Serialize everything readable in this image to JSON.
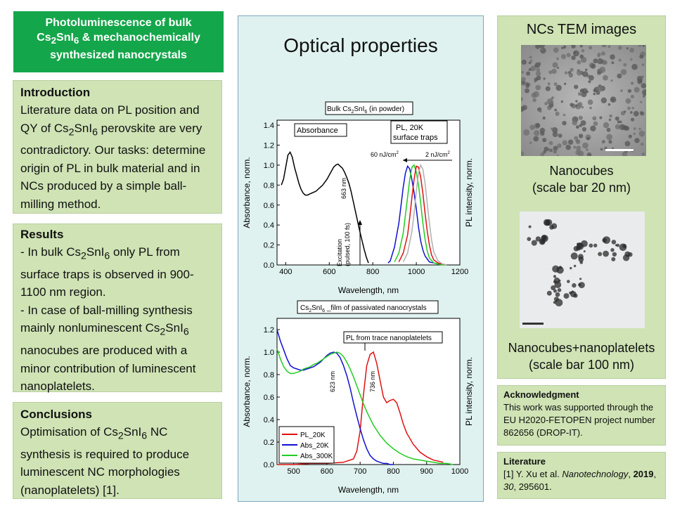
{
  "title": {
    "l1": "Photoluminescence of bulk",
    "l2a": "Cs",
    "l2s1": "2",
    "l2b": "SnI",
    "l2s2": "6",
    "l2c": " & mechanochemically",
    "l3": "synthesized nanocrystals"
  },
  "intro": {
    "heading": "Introduction",
    "t1": "Literature data on PL position and QY of Cs",
    "s1": "2",
    "t2": "SnI",
    "s2": "6",
    "t3": " perovskite are very contradictory. Our tasks: determine origin of PL in bulk material and in NCs produced by a simple ball-milling method."
  },
  "results": {
    "heading": "Results",
    "a1": "- In bulk Cs",
    "as1": "2",
    "a2": "SnI",
    "as2": "6",
    "a3": " only PL from surface traps is observed  in 900-1100 nm region.",
    "b1": "- In case of ball-milling synthesis mainly nonluminescent  Cs",
    "bs1": "2",
    "b2": "SnI",
    "bs2": "6",
    "b3": " nanocubes are produced with a minor contribution of luminescent nanoplatelets."
  },
  "conclusions": {
    "heading": "Conclusions",
    "t1": "Optimisation of Cs",
    "s1": "2",
    "t2": "SnI",
    "s2": "6",
    "t3": " NC synthesis is required to produce luminescent NC morphologies (nanoplatelets)  [1]."
  },
  "center": {
    "heading": "Optical properties"
  },
  "tem": {
    "heading": "NCs TEM images",
    "cap1a": "Nanocubes",
    "cap1b": "(scale bar 20 nm)",
    "cap2a": "Nanocubes+nanoplatelets",
    "cap2b": "(scale bar 100 nm)"
  },
  "ack": {
    "heading": "Acknowledgment",
    "text": "This work was supported through the EU H2020-FETOPEN project number 862656 (DROP-IT)."
  },
  "lit": {
    "heading": "Literature",
    "a": "[1] Y. Xu et al. ",
    "j": "Nanotechnology",
    "c": ", ",
    "y": "2019",
    "c2": ", ",
    "v": "30",
    "p": ", 295601."
  },
  "colors": {
    "red": "#e01010",
    "blue": "#1010d0",
    "green": "#22cc22",
    "gray": "#b0b0b0",
    "dot": "#1f1f1f"
  },
  "chart_data": [
    {
      "type": "line",
      "title_a": "Bulk Cs",
      "title_s1": "2",
      "title_b": "SnI",
      "title_s2": "6",
      "title_c": " (in powder)",
      "xlabel": "Wavelength, nm",
      "ylabel": "Absorbance, norm.",
      "ylabel2": "PL intensity, norm.",
      "xlim": [
        360,
        1200
      ],
      "ylim": [
        0,
        1.45
      ],
      "xticks": [
        400,
        600,
        800,
        1000,
        1200
      ],
      "yticks": [
        0.0,
        0.2,
        0.4,
        0.6,
        0.8,
        1.0,
        1.2,
        1.4
      ],
      "xtick_labels": [
        "400",
        "600",
        "800",
        "1000",
        "1200"
      ],
      "ytick_labels": [
        "0.0",
        "0.2",
        "0.4",
        "0.6",
        "0.8",
        "1.0",
        "1.2",
        "1.4"
      ],
      "annotations": {
        "absorbance": "Absorbance",
        "pl1": "PL, 20K",
        "pl2": "surface traps",
        "p60": "60 nJ/cm",
        "p60s": "2",
        "p2": "2 nJ/cm",
        "p2s": "2",
        "pk663": "663 nm",
        "exc1": "Excitation",
        "exc2": "(pulsed, 100 fs)"
      },
      "series": [
        {
          "name": "Absorbance",
          "color": "#000000",
          "x": [
            380,
            390,
            400,
            410,
            420,
            430,
            440,
            450,
            460,
            470,
            480,
            490,
            500,
            510,
            520,
            530,
            540,
            550,
            560,
            570,
            580,
            590,
            600,
            610,
            620,
            630,
            640,
            650,
            660,
            670,
            680,
            690,
            700,
            710,
            720,
            730,
            740,
            750,
            760,
            770,
            780
          ],
          "y": [
            0.8,
            0.86,
            0.98,
            1.1,
            1.13,
            1.08,
            0.98,
            0.9,
            0.82,
            0.76,
            0.72,
            0.7,
            0.7,
            0.71,
            0.72,
            0.73,
            0.74,
            0.76,
            0.78,
            0.8,
            0.83,
            0.86,
            0.9,
            0.94,
            0.98,
            1.0,
            1.01,
            0.99,
            0.97,
            0.93,
            0.88,
            0.82,
            0.74,
            0.64,
            0.54,
            0.44,
            0.34,
            0.25,
            0.16,
            0.08,
            0.02
          ]
        },
        {
          "name": "PL 60 nJ/cm2",
          "color": "#1010d0",
          "x": [
            870,
            880,
            900,
            920,
            930,
            940,
            950,
            960,
            970,
            980,
            990,
            1000,
            1010,
            1020,
            1030,
            1040,
            1050,
            1060,
            1080,
            1100,
            1120
          ],
          "y": [
            0.02,
            0.04,
            0.18,
            0.42,
            0.6,
            0.78,
            0.92,
            0.99,
            0.96,
            0.85,
            0.72,
            0.56,
            0.38,
            0.24,
            0.15,
            0.09,
            0.06,
            0.03,
            0.02,
            0.01,
            0.0
          ]
        },
        {
          "name": "PL",
          "color": "#22cc22",
          "x": [
            900,
            920,
            940,
            950,
            960,
            970,
            980,
            990,
            1000,
            1010,
            1020,
            1030,
            1040,
            1050,
            1060,
            1080,
            1100,
            1120,
            1140
          ],
          "y": [
            0.03,
            0.12,
            0.32,
            0.5,
            0.68,
            0.86,
            0.98,
            1.0,
            0.93,
            0.8,
            0.62,
            0.42,
            0.26,
            0.14,
            0.07,
            0.02,
            0.01,
            0.0,
            0.0
          ]
        },
        {
          "name": "PL",
          "color": "#e01010",
          "x": [
            920,
            940,
            960,
            970,
            980,
            990,
            1000,
            1010,
            1020,
            1030,
            1040,
            1050,
            1060,
            1070,
            1080,
            1100,
            1120,
            1140
          ],
          "y": [
            0.03,
            0.12,
            0.3,
            0.48,
            0.68,
            0.86,
            0.99,
            0.98,
            0.88,
            0.72,
            0.52,
            0.34,
            0.2,
            0.1,
            0.05,
            0.02,
            0.01,
            0.0
          ]
        },
        {
          "name": "PL 2 nJ/cm2",
          "color": "#b0b0b0",
          "x": [
            940,
            960,
            980,
            990,
            1000,
            1010,
            1020,
            1030,
            1040,
            1050,
            1060,
            1070,
            1080,
            1100,
            1120,
            1140
          ],
          "y": [
            0.03,
            0.12,
            0.34,
            0.52,
            0.74,
            0.92,
            1.0,
            0.96,
            0.82,
            0.62,
            0.42,
            0.25,
            0.13,
            0.04,
            0.01,
            0.0
          ]
        }
      ]
    },
    {
      "type": "line",
      "title_a": "Cs",
      "title_s1": "2",
      "title_b": "SnI",
      "title_s2": "6",
      "title_c": " _film of passivated nanocrystals",
      "xlabel": "Wavelength, nm",
      "ylabel": "Absorbance, norm.",
      "ylabel2": "PL intensity, norm.",
      "xlim": [
        450,
        1000
      ],
      "ylim": [
        0,
        1.3
      ],
      "xticks": [
        500,
        600,
        700,
        800,
        900,
        1000
      ],
      "yticks": [
        0.0,
        0.2,
        0.4,
        0.6,
        0.8,
        1.0,
        1.2
      ],
      "xtick_labels": [
        "500",
        "600",
        "700",
        "800",
        "900",
        "1000"
      ],
      "ytick_labels": [
        "0.0",
        "0.2",
        "0.4",
        "0.6",
        "0.8",
        "1.0",
        "1.2"
      ],
      "annotations": {
        "pl_trace": "PL from trace nanoplatelets",
        "pk623": "623 nm",
        "pk736": "736 nm"
      },
      "legend": [
        "PL_20K",
        "Abs_20K",
        "Abs_300K"
      ],
      "series": [
        {
          "name": "PL_20K",
          "color": "#e01010",
          "x": [
            450,
            500,
            550,
            600,
            650,
            680,
            690,
            700,
            710,
            720,
            730,
            740,
            750,
            760,
            770,
            780,
            790,
            800,
            810,
            820,
            830,
            840,
            860,
            880,
            900,
            920,
            950
          ],
          "y": [
            0.0,
            0.0,
            0.01,
            0.01,
            0.02,
            0.05,
            0.12,
            0.3,
            0.62,
            0.88,
            0.98,
            1.0,
            0.9,
            0.75,
            0.6,
            0.55,
            0.57,
            0.58,
            0.55,
            0.46,
            0.36,
            0.28,
            0.18,
            0.11,
            0.07,
            0.04,
            0.02
          ]
        },
        {
          "name": "Abs_20K",
          "color": "#1010d0",
          "x": [
            450,
            460,
            470,
            480,
            490,
            500,
            510,
            520,
            530,
            540,
            550,
            560,
            570,
            580,
            590,
            600,
            610,
            620,
            630,
            640,
            650,
            660,
            670,
            680,
            690,
            700,
            710,
            720,
            730,
            740,
            750,
            760,
            770,
            780,
            790,
            800
          ],
          "y": [
            1.2,
            1.1,
            1.02,
            0.94,
            0.88,
            0.86,
            0.85,
            0.84,
            0.84,
            0.85,
            0.86,
            0.87,
            0.89,
            0.91,
            0.94,
            0.97,
            0.99,
            1.0,
            0.99,
            0.95,
            0.88,
            0.79,
            0.68,
            0.55,
            0.43,
            0.32,
            0.22,
            0.14,
            0.08,
            0.05,
            0.03,
            0.02,
            0.01,
            0.01,
            0.0,
            0.0
          ]
        },
        {
          "name": "Abs_300K",
          "color": "#22cc22",
          "x": [
            450,
            460,
            470,
            480,
            490,
            500,
            510,
            520,
            530,
            540,
            550,
            560,
            570,
            580,
            590,
            600,
            610,
            620,
            630,
            640,
            650,
            660,
            670,
            680,
            690,
            700,
            710,
            720,
            740,
            760,
            780,
            800,
            820,
            840,
            860,
            880,
            900,
            920,
            940,
            960,
            980
          ],
          "y": [
            1.03,
            0.94,
            0.87,
            0.83,
            0.81,
            0.81,
            0.82,
            0.83,
            0.85,
            0.86,
            0.87,
            0.89,
            0.9,
            0.92,
            0.94,
            0.96,
            0.98,
            0.99,
            1.0,
            0.99,
            0.96,
            0.91,
            0.85,
            0.78,
            0.7,
            0.62,
            0.54,
            0.47,
            0.35,
            0.26,
            0.19,
            0.14,
            0.1,
            0.07,
            0.05,
            0.04,
            0.03,
            0.02,
            0.01,
            0.01,
            0.0
          ]
        }
      ]
    }
  ]
}
